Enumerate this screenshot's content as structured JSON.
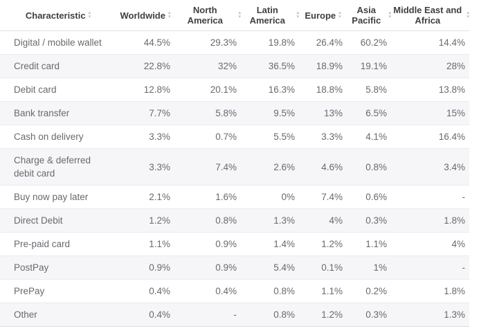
{
  "table": {
    "columns": [
      {
        "key": "characteristic",
        "label": "Characteristic",
        "sortable": true,
        "align": "left"
      },
      {
        "key": "worldwide",
        "label": "Worldwide",
        "sortable": true,
        "align": "right"
      },
      {
        "key": "north-america",
        "label": "North America",
        "sortable": true,
        "align": "right"
      },
      {
        "key": "latin-america",
        "label": "Latin America",
        "sortable": true,
        "align": "right"
      },
      {
        "key": "europe",
        "label": "Europe",
        "sortable": true,
        "align": "right"
      },
      {
        "key": "asia-pacific",
        "label": "Asia Pacific",
        "sortable": true,
        "align": "right"
      },
      {
        "key": "middle-east-africa",
        "label": "Middle East and Africa",
        "sortable": true,
        "align": "right"
      }
    ],
    "sort_icon": {
      "up_glyph": "▴",
      "down_glyph": "▾"
    }
  },
  "chart_data": {
    "type": "table",
    "title": "",
    "columns": [
      "Characteristic",
      "Worldwide",
      "North America",
      "Latin America",
      "Europe",
      "Asia Pacific",
      "Middle East and Africa"
    ],
    "rows": [
      [
        "Digital / mobile wallet",
        "44.5%",
        "29.3%",
        "19.8%",
        "26.4%",
        "60.2%",
        "14.4%"
      ],
      [
        "Credit card",
        "22.8%",
        "32%",
        "36.5%",
        "18.9%",
        "19.1%",
        "28%"
      ],
      [
        "Debit card",
        "12.8%",
        "20.1%",
        "16.3%",
        "18.8%",
        "5.8%",
        "13.8%"
      ],
      [
        "Bank transfer",
        "7.7%",
        "5.8%",
        "9.5%",
        "13%",
        "6.5%",
        "15%"
      ],
      [
        "Cash on delivery",
        "3.3%",
        "0.7%",
        "5.5%",
        "3.3%",
        "4.1%",
        "16.4%"
      ],
      [
        "Charge & deferred debit card",
        "3.3%",
        "7.4%",
        "2.6%",
        "4.6%",
        "0.8%",
        "3.4%"
      ],
      [
        "Buy now pay later",
        "2.1%",
        "1.6%",
        "0%",
        "7.4%",
        "0.6%",
        "-"
      ],
      [
        "Direct Debit",
        "1.2%",
        "0.8%",
        "1.3%",
        "4%",
        "0.3%",
        "1.8%"
      ],
      [
        "Pre-paid card",
        "1.1%",
        "0.9%",
        "1.4%",
        "1.2%",
        "1.1%",
        "4%"
      ],
      [
        "PostPay",
        "0.9%",
        "0.9%",
        "5.4%",
        "0.1%",
        "1%",
        "-"
      ],
      [
        "PrePay",
        "0.4%",
        "0.4%",
        "0.8%",
        "1.1%",
        "0.2%",
        "1.8%"
      ],
      [
        "Other",
        "0.4%",
        "-",
        "0.8%",
        "1.2%",
        "0.3%",
        "1.3%"
      ]
    ],
    "value_unit": "%",
    "layout": {
      "striped": true,
      "grid": "horizontal-only",
      "legend": "none"
    }
  },
  "colors": {
    "header_text": "#3f3f3f",
    "body_text": "#666a6e",
    "stripe_bg": "#f6f6f8",
    "row_border": "#ebebee",
    "header_border": "#e2e2e6",
    "sort_icon": "#b9bcc2",
    "background": "#ffffff"
  }
}
